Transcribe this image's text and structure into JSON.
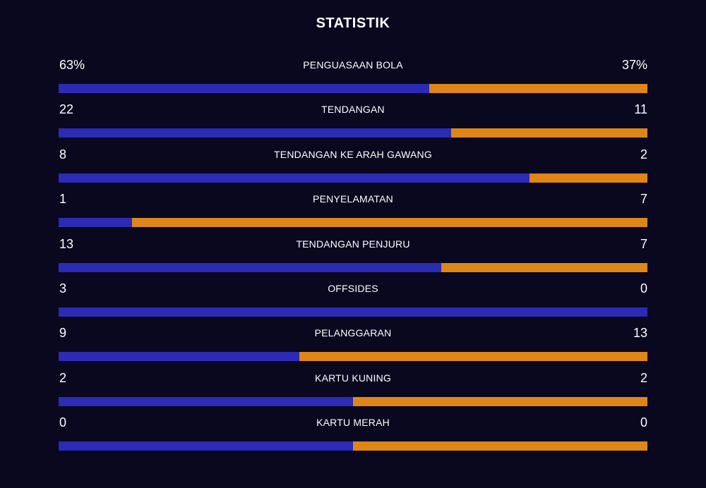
{
  "colors": {
    "background": "#09081f",
    "home": "#2b2bb5",
    "away": "#de8617",
    "text": "#ffffff"
  },
  "title": "STATISTIK",
  "stats": [
    {
      "label": "PENGUASAAN BOLA",
      "home": "63%",
      "away": "37%",
      "home_value": 63,
      "away_value": 37
    },
    {
      "label": "TENDANGAN",
      "home": "22",
      "away": "11",
      "home_value": 22,
      "away_value": 11
    },
    {
      "label": "TENDANGAN KE ARAH GAWANG",
      "home": "8",
      "away": "2",
      "home_value": 8,
      "away_value": 2
    },
    {
      "label": "PENYELAMATAN",
      "home": "1",
      "away": "7",
      "home_value": 1,
      "away_value": 7
    },
    {
      "label": "TENDANGAN PENJURU",
      "home": "13",
      "away": "7",
      "home_value": 13,
      "away_value": 7
    },
    {
      "label": "OFFSIDES",
      "home": "3",
      "away": "0",
      "home_value": 3,
      "away_value": 0
    },
    {
      "label": "PELANGGARAN",
      "home": "9",
      "away": "13",
      "home_value": 9,
      "away_value": 13
    },
    {
      "label": "KARTU KUNING",
      "home": "2",
      "away": "2",
      "home_value": 2,
      "away_value": 2
    },
    {
      "label": "KARTU MERAH",
      "home": "0",
      "away": "0",
      "home_value": 0,
      "away_value": 0
    }
  ]
}
